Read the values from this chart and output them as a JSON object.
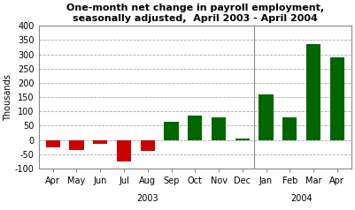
{
  "categories": [
    "Apr",
    "May",
    "Jun",
    "Jul",
    "Aug",
    "Sep",
    "Oct",
    "Nov",
    "Dec",
    "Jan",
    "Feb",
    "Mar",
    "Apr"
  ],
  "year_labels": [
    "2003",
    "2004"
  ],
  "values": [
    -25,
    -35,
    -15,
    -75,
    -40,
    65,
    85,
    80,
    5,
    160,
    80,
    335,
    290
  ],
  "bar_colors": [
    "#cc0000",
    "#cc0000",
    "#cc0000",
    "#cc0000",
    "#cc0000",
    "#006600",
    "#006600",
    "#006600",
    "#006600",
    "#006600",
    "#006600",
    "#006600",
    "#006600"
  ],
  "title_line1": "One-month net change in payroll employment,",
  "title_line2": "seasonally adjusted,  April 2003 - April 2004",
  "ylabel": "Thousands",
  "ylim": [
    -100,
    400
  ],
  "yticks": [
    -100,
    -50,
    0,
    50,
    100,
    150,
    200,
    250,
    300,
    350,
    400
  ],
  "background_color": "#ffffff",
  "grid_color": "#aaaaaa",
  "border_color": "#888888"
}
